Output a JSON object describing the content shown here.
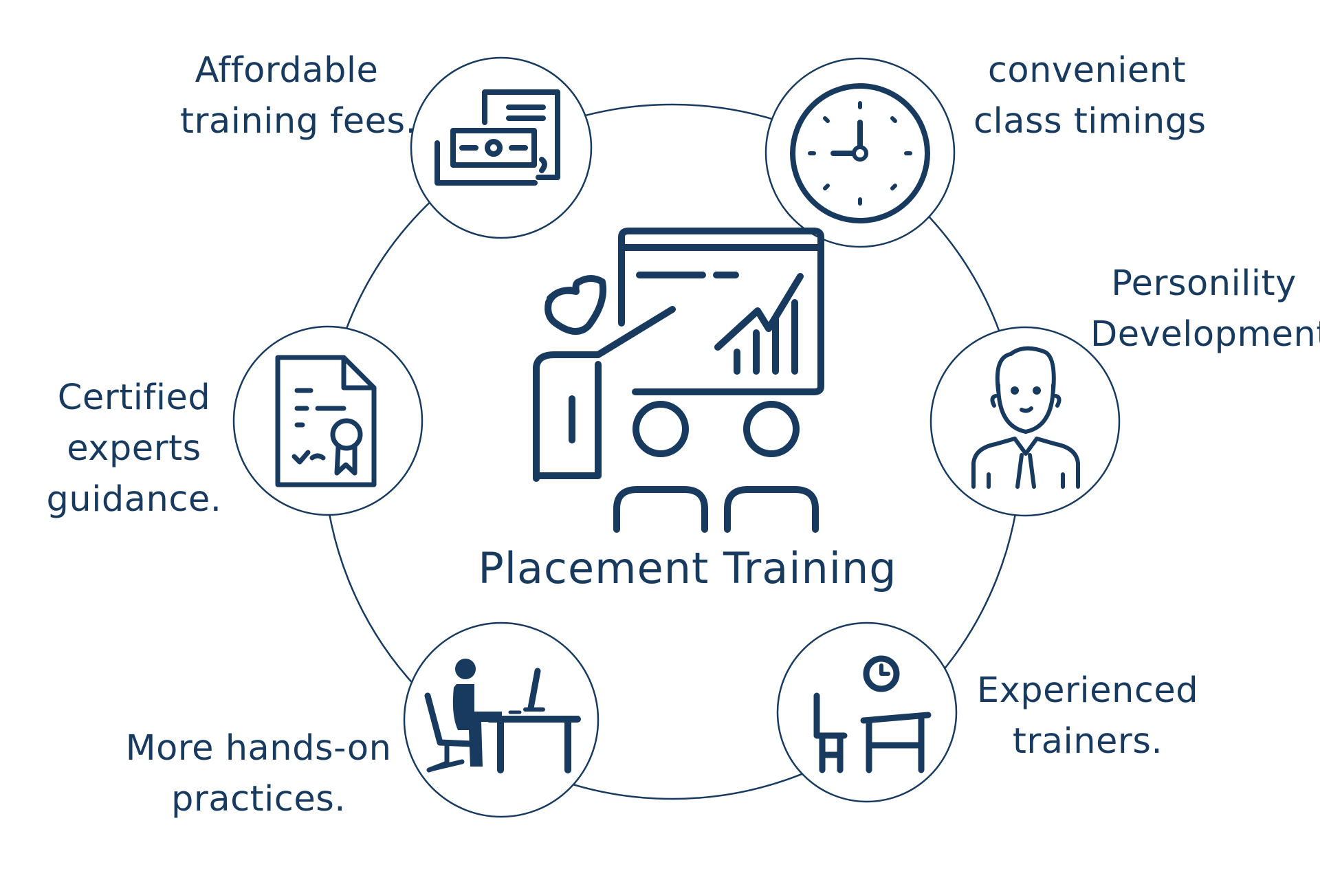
{
  "center": {
    "title": "Placement Training",
    "icon": "presentation-trainer-icon"
  },
  "features": {
    "fees": {
      "line1": "Affordable",
      "line2": "training fees.",
      "icon": "money-bills-icon"
    },
    "timings": {
      "line1": "convenient",
      "line2": "class timings",
      "icon": "clock-icon"
    },
    "personality": {
      "line1": "Personility",
      "line2": "Development",
      "icon": "person-tie-icon"
    },
    "trainers": {
      "line1": "Experienced",
      "line2": "trainers.",
      "icon": "classroom-desk-icon"
    },
    "handson": {
      "line1": "More hands-on",
      "line2": "practices.",
      "icon": "computer-desk-icon"
    },
    "certified": {
      "line1": "Certified",
      "line2": "experts",
      "line3": "guidance.",
      "icon": "certificate-icon"
    }
  },
  "colors": {
    "primary": "#173a5e",
    "background": "#ffffff"
  }
}
